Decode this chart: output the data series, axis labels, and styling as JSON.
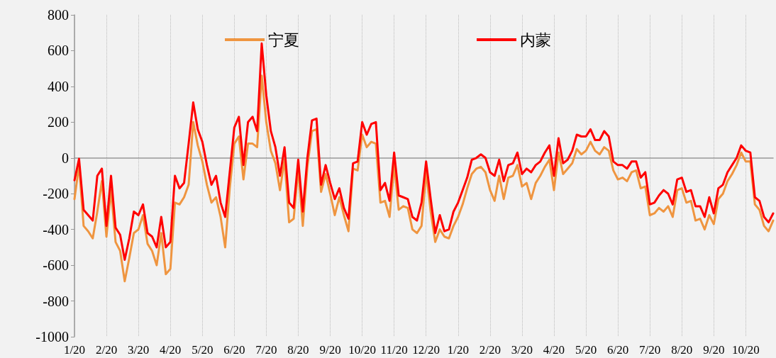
{
  "chart_data": {
    "type": "line",
    "categories": [
      "1/20",
      null,
      null,
      null,
      null,
      null,
      null,
      "2/20",
      null,
      null,
      null,
      null,
      null,
      null,
      "3/20",
      null,
      null,
      null,
      null,
      null,
      null,
      "4/20",
      null,
      null,
      null,
      null,
      null,
      null,
      "5/20",
      null,
      null,
      null,
      null,
      null,
      null,
      "6/20",
      null,
      null,
      null,
      null,
      null,
      null,
      "7/20",
      null,
      null,
      null,
      null,
      null,
      null,
      "8/20",
      null,
      null,
      null,
      null,
      null,
      null,
      "9/20",
      null,
      null,
      null,
      null,
      null,
      null,
      "10/20",
      null,
      null,
      null,
      null,
      null,
      null,
      "11/20",
      null,
      null,
      null,
      null,
      null,
      null,
      "12/20",
      null,
      null,
      null,
      null,
      null,
      null,
      "1/20",
      null,
      null,
      null,
      null,
      null,
      null,
      "2/20",
      null,
      null,
      null,
      null,
      null,
      null,
      "3/20",
      null,
      null,
      null,
      null,
      null,
      null,
      "4/20",
      null,
      null,
      null,
      null,
      null,
      null,
      "5/20",
      null,
      null,
      null,
      null,
      null,
      null,
      "6/20",
      null,
      null,
      null,
      null,
      null,
      null,
      "7/20",
      null,
      null,
      null,
      null,
      null,
      null,
      "8/20",
      null,
      null,
      null,
      null,
      null,
      null,
      "9/20",
      null,
      null,
      null,
      null,
      null,
      null,
      "10/20",
      null,
      null,
      null,
      null,
      null,
      null
    ],
    "series": [
      {
        "name": "宁夏",
        "color": "#ef9540",
        "values": [
          -230,
          -40,
          -380,
          -410,
          -450,
          -300,
          -130,
          -440,
          -180,
          -470,
          -520,
          -690,
          -560,
          -420,
          -400,
          -320,
          -480,
          -520,
          -600,
          -420,
          -650,
          -620,
          -250,
          -260,
          -220,
          -150,
          200,
          70,
          -20,
          -150,
          -250,
          -220,
          -330,
          -500,
          -170,
          80,
          120,
          -120,
          80,
          80,
          60,
          460,
          200,
          40,
          -30,
          -180,
          -10,
          -360,
          -340,
          -60,
          -380,
          -50,
          150,
          160,
          -190,
          -90,
          -200,
          -320,
          -220,
          -320,
          -410,
          -60,
          -70,
          130,
          60,
          90,
          80,
          -250,
          -240,
          -330,
          -40,
          -290,
          -270,
          -280,
          -400,
          -420,
          -380,
          -80,
          -300,
          -470,
          -400,
          -440,
          -450,
          -380,
          -330,
          -260,
          -170,
          -90,
          -60,
          -50,
          -80,
          -180,
          -240,
          -100,
          -230,
          -110,
          -100,
          -40,
          -160,
          -140,
          -230,
          -140,
          -100,
          -50,
          -10,
          -180,
          30,
          -90,
          -60,
          -30,
          50,
          20,
          40,
          90,
          40,
          20,
          60,
          40,
          -70,
          -120,
          -110,
          -130,
          -80,
          -70,
          -170,
          -160,
          -320,
          -310,
          -280,
          -300,
          -270,
          -330,
          -180,
          -170,
          -250,
          -240,
          -350,
          -340,
          -400,
          -320,
          -370,
          -230,
          -200,
          -130,
          -90,
          -40,
          30,
          -20,
          -20,
          -260,
          -290,
          -380,
          -410,
          -350
        ]
      },
      {
        "name": "内蒙",
        "color": "#ff0000",
        "values": [
          -125,
          -5,
          -290,
          -320,
          -350,
          -100,
          -60,
          -380,
          -100,
          -390,
          -430,
          -570,
          -450,
          -300,
          -320,
          -260,
          -420,
          -440,
          -500,
          -330,
          -500,
          -470,
          -100,
          -170,
          -140,
          80,
          310,
          160,
          90,
          -40,
          -150,
          -100,
          -250,
          -330,
          -80,
          170,
          230,
          -40,
          200,
          230,
          150,
          640,
          350,
          150,
          60,
          -100,
          60,
          -250,
          -280,
          -10,
          -300,
          0,
          210,
          220,
          -150,
          -40,
          -140,
          -230,
          -170,
          -280,
          -340,
          -30,
          -20,
          200,
          130,
          190,
          200,
          -180,
          -140,
          -240,
          30,
          -210,
          -220,
          -230,
          -330,
          -350,
          -250,
          -20,
          -230,
          -420,
          -320,
          -410,
          -400,
          -300,
          -250,
          -180,
          -110,
          -10,
          0,
          20,
          0,
          -80,
          -100,
          -10,
          -130,
          -40,
          -30,
          30,
          -90,
          -60,
          -80,
          -40,
          -20,
          30,
          70,
          -100,
          110,
          -30,
          -10,
          40,
          130,
          120,
          120,
          160,
          100,
          100,
          150,
          120,
          -20,
          -40,
          -40,
          -60,
          -20,
          -20,
          -110,
          -80,
          -260,
          -250,
          -210,
          -180,
          -200,
          -260,
          -120,
          -110,
          -190,
          -180,
          -270,
          -270,
          -330,
          -220,
          -310,
          -170,
          -150,
          -80,
          -40,
          0,
          70,
          40,
          30,
          -220,
          -240,
          -330,
          -360,
          -310
        ]
      }
    ],
    "ylim": [
      -1000,
      800
    ],
    "yticks": [
      -1000,
      -800,
      -600,
      -400,
      -200,
      0,
      200,
      400,
      600,
      800
    ],
    "grid": "x",
    "legend": "top",
    "marker": "none",
    "line_style": "solid"
  }
}
